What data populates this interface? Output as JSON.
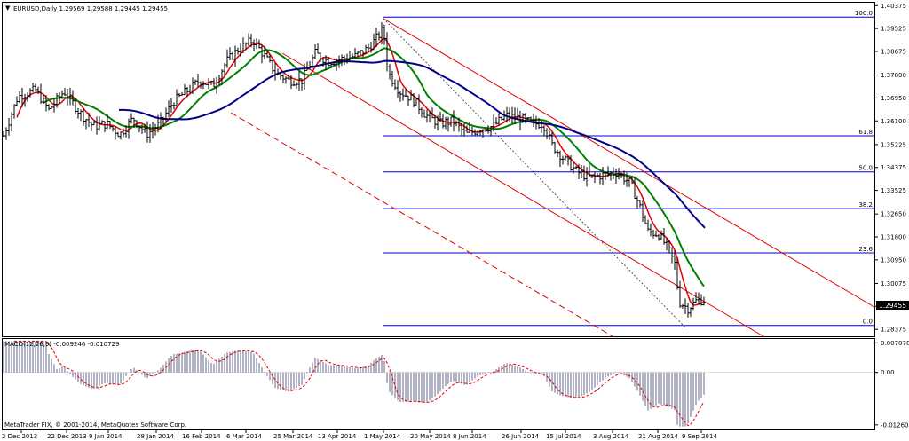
{
  "window": {
    "header": "EURUSD,Daily  1.29569 1.29588 1.29445 1.29455",
    "footer": "MetaTrader FIX, © 2001-2014, MetaQuotes Software Corp."
  },
  "chart_data": [
    {
      "type": "line",
      "name": "EURUSD price panel",
      "title": "EURUSD,Daily  1.29569 1.29588 1.29445 1.29455",
      "ohlc_last": {
        "open": 1.29569,
        "high": 1.29588,
        "low": 1.29445,
        "close": 1.29455
      },
      "current_price": 1.29455,
      "ylim": [
        1.2815,
        1.4045
      ],
      "y_ticks": [
        "1.40375",
        "1.39525",
        "1.38675",
        "1.37800",
        "1.36950",
        "1.36100",
        "1.35225",
        "1.34375",
        "1.33525",
        "1.32650",
        "1.31800",
        "1.30950",
        "1.30075",
        "1.29225",
        "1.28375"
      ],
      "x_ticks": [
        "2 Dec 2013",
        "22 Dec 2013",
        "9 Jan 2014",
        "28 Jan 2014",
        "16 Feb 2014",
        "6 Mar 2014",
        "25 Mar 2014",
        "13 Apr 2014",
        "1 May 2014",
        "20 May 2014",
        "8 Jun 2014",
        "26 Jun 2014",
        "15 Jul 2014",
        "3 Aug 2014",
        "21 Aug 2014",
        "9 Sep 2014"
      ],
      "fibonacci": [
        {
          "level": "100.0",
          "price": 1.3995
        },
        {
          "level": "61.8",
          "price": 1.3555
        },
        {
          "level": "50.0",
          "price": 1.3421
        },
        {
          "level": "38.2",
          "price": 1.3285
        },
        {
          "level": "23.6",
          "price": 1.3121
        },
        {
          "level": "0.0",
          "price": 1.2852
        }
      ],
      "series": [
        {
          "name": "",
          "color": "#e00000",
          "kind": "ma-fast"
        },
        {
          "name": "",
          "color": "#008000",
          "kind": "ma-medium"
        },
        {
          "name": "",
          "color": "#00008b",
          "kind": "ma-slow"
        }
      ],
      "channel_color": "#e00000",
      "fib_color": "#0000cc"
    },
    {
      "type": "bar",
      "name": "MACD panel",
      "title": "MACD(12,26,9) -0.009246 -0.010729",
      "macd": -0.009246,
      "signal": -0.010729,
      "ylim": [
        -0.0135,
        0.0078
      ],
      "y_ticks": [
        "0.007078",
        "0.00",
        "-0.012606"
      ]
    }
  ]
}
